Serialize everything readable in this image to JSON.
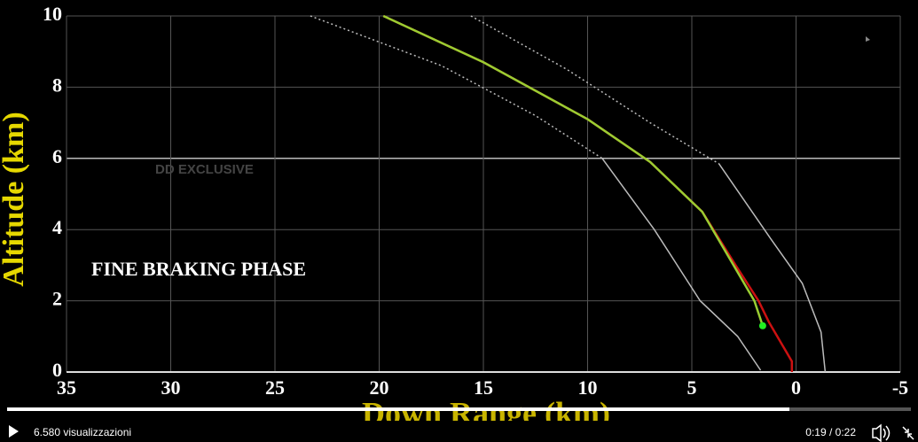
{
  "chart_data": {
    "type": "line",
    "xlabel": "Down Range (km)",
    "ylabel": "Altitude (km)",
    "annotations": [
      "DD EXCLUSIVE",
      "FINE BRAKING PHASE"
    ],
    "xlim": [
      35,
      -5
    ],
    "xticks": [
      35,
      30,
      25,
      20,
      15,
      10,
      5,
      0,
      -5
    ],
    "ylim": [
      0,
      10
    ],
    "yticks": [
      0,
      2,
      4,
      6,
      8,
      10
    ],
    "grid": true,
    "series": [
      {
        "color": "#bbbbbb",
        "style": "dotted",
        "x": [
          23.3,
          17,
          12.5,
          9.3
        ],
        "values": [
          10,
          8.6,
          7.2,
          6
        ]
      },
      {
        "color": "#bbbbbb",
        "style": "solid",
        "x": [
          9.3,
          6.8,
          4.6,
          2.8,
          1.7
        ],
        "values": [
          6,
          4,
          2,
          1,
          0.05
        ]
      },
      {
        "color": "#bbbbbb",
        "style": "dotted",
        "x": [
          15.6,
          11,
          7,
          3.7
        ],
        "values": [
          10,
          8.5,
          7,
          5.85
        ]
      },
      {
        "color": "#bbbbbb",
        "style": "solid",
        "x": [
          3.7,
          1.2,
          -0.3,
          -1.2,
          -1.4
        ],
        "values": [
          5.85,
          3.73,
          2.49,
          1.12,
          0
        ]
      },
      {
        "color": "#cc1111",
        "style": "solid",
        "x": [
          19.8,
          15,
          10,
          7,
          4.5,
          2.9,
          1.8,
          1.3,
          0.7,
          0.2,
          0.2
        ],
        "values": [
          10,
          8.7,
          7.1,
          5.9,
          4.5,
          3,
          2,
          1.4,
          0.8,
          0.3,
          0
        ]
      },
      {
        "color": "#9acd32",
        "style": "solid",
        "x": [
          19.8,
          15,
          10,
          7,
          4.5,
          3,
          2,
          1.6
        ],
        "values": [
          10,
          8.7,
          7.1,
          5.9,
          4.5,
          3,
          2,
          1.3
        ]
      }
    ]
  },
  "player": {
    "views": "6.580 visualizzazioni",
    "time": "0:19 / 0:22"
  }
}
